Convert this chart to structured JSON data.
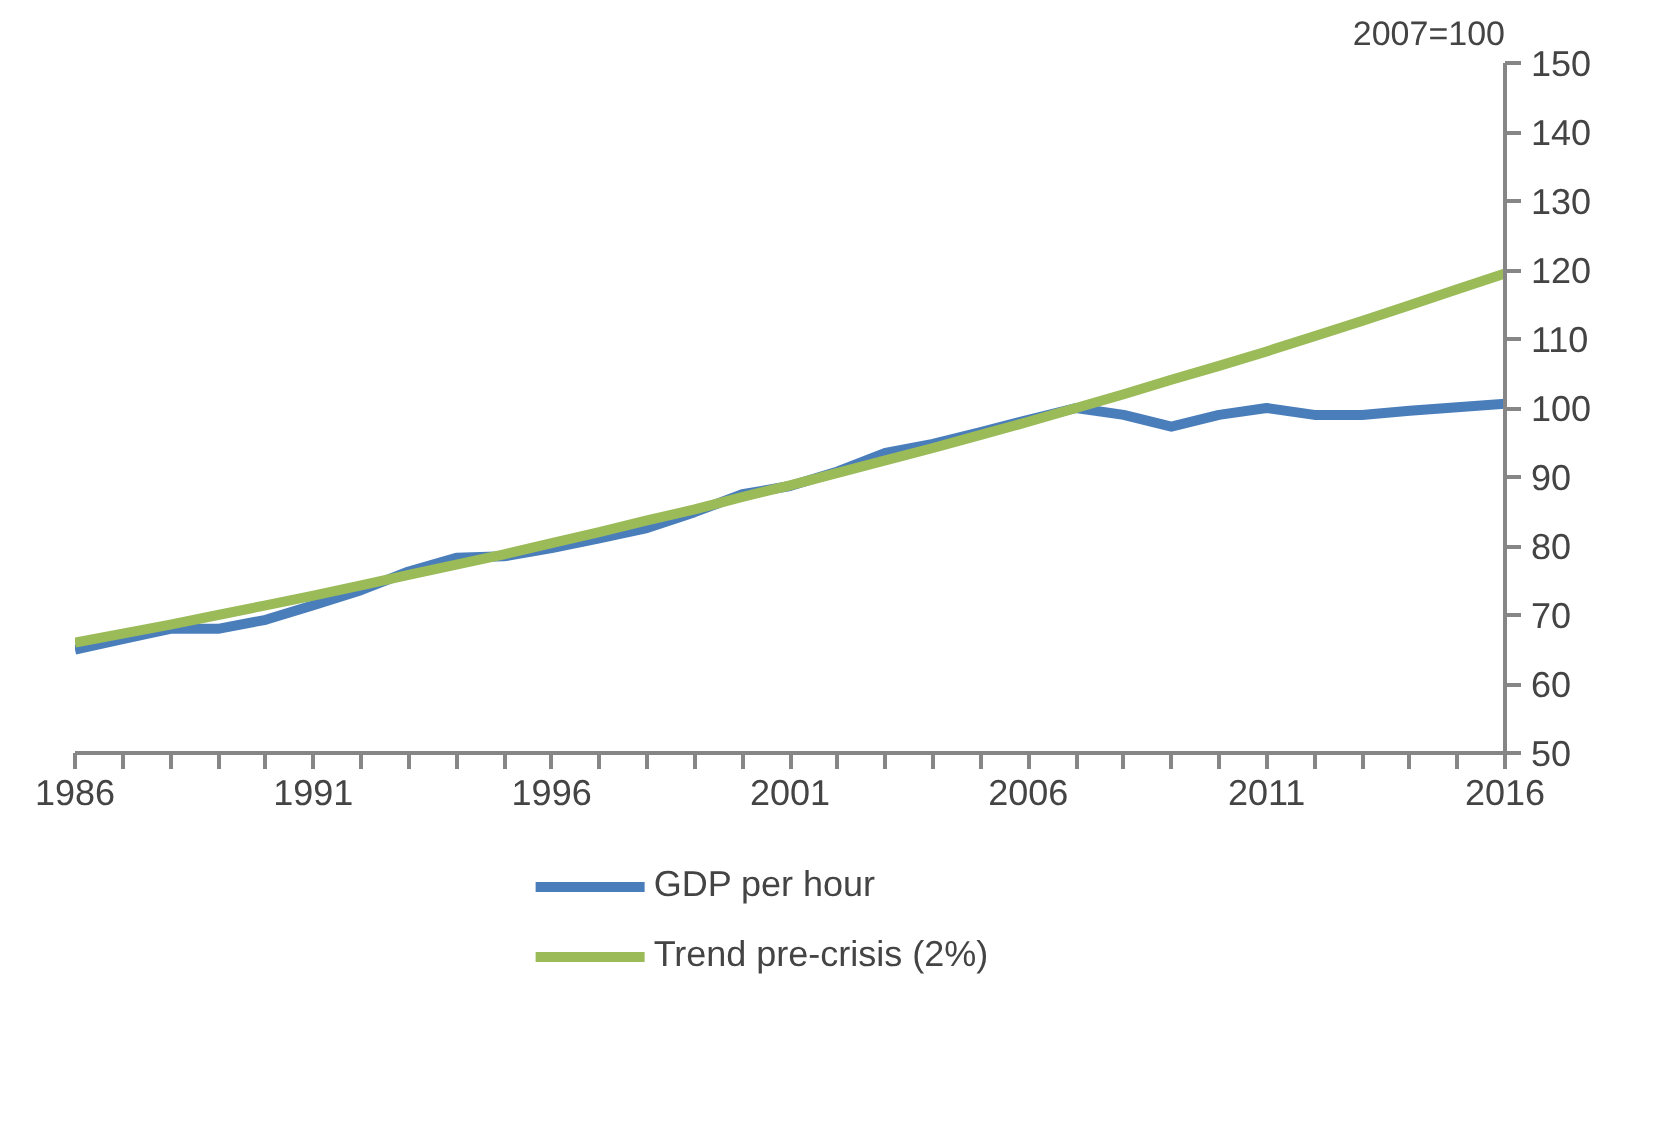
{
  "chart_data": {
    "type": "line",
    "ylabel": "2007=100",
    "x": [
      1986,
      1987,
      1988,
      1989,
      1990,
      1991,
      1992,
      1993,
      1994,
      1995,
      1996,
      1997,
      1998,
      1999,
      2000,
      2001,
      2002,
      2003,
      2004,
      2005,
      2006,
      2007,
      2008,
      2009,
      2010,
      2011,
      2012,
      2013,
      2014,
      2015,
      2016
    ],
    "series": [
      {
        "name": "GDP per hour",
        "color": "#4a7ebb",
        "values": [
          65,
          66.5,
          68,
          68,
          69.3,
          71.4,
          73.6,
          76.3,
          78.3,
          78.5,
          79.7,
          81.1,
          82.6,
          84.9,
          87.5,
          88.7,
          90.8,
          93.5,
          94.8,
          96.5,
          98.3,
          100,
          99,
          97.3,
          99,
          100,
          99,
          99,
          99.6,
          100.1,
          100.6
        ]
      },
      {
        "name": "Trend pre-crisis (2%)",
        "color": "#9bbb59",
        "values": [
          66,
          67.3,
          68.6,
          70,
          71.4,
          72.8,
          74.3,
          75.8,
          77.3,
          78.8,
          80.4,
          82,
          83.7,
          85.3,
          87.1,
          88.8,
          90.6,
          92.4,
          94.2,
          96.1,
          98,
          100,
          102,
          104.1,
          106.1,
          108.2,
          110.4,
          112.6,
          114.9,
          117.2,
          119.5
        ]
      }
    ],
    "xlim": [
      1986,
      2016
    ],
    "xticks": [
      1986,
      1991,
      1996,
      2001,
      2006,
      2011,
      2016
    ],
    "ylim": [
      50,
      150
    ],
    "yticks": [
      50,
      60,
      70,
      80,
      90,
      100,
      110,
      120,
      130,
      140,
      150
    ],
    "grid": false,
    "legend": "bottom",
    "marker": "none",
    "line_style": "solid"
  }
}
